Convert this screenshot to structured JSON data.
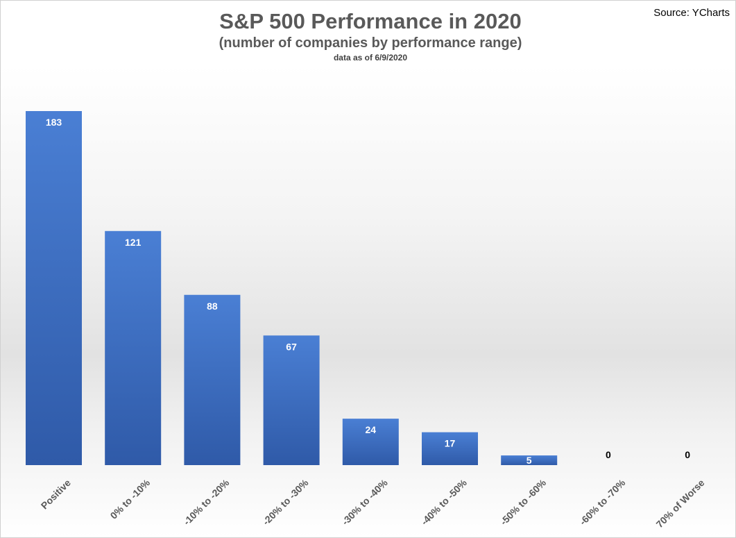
{
  "chart_data": {
    "type": "bar",
    "title": "S&P 500 Performance in 2020",
    "subtitle": "(number of companies by performance range)",
    "note": "data as of 6/9/2020",
    "source": "Source: YCharts",
    "categories": [
      "Positive",
      "0% to -10%",
      "-10% to -20%",
      "-20% to -30%",
      "-30% to -40%",
      "-40% to -50%",
      "-50% to -60%",
      "-60% to -70%",
      "70% of Worse"
    ],
    "values": [
      183,
      121,
      88,
      67,
      24,
      17,
      5,
      0,
      0
    ],
    "ylim": [
      0,
      183
    ],
    "grid": false,
    "legend": "none",
    "data_labels": true,
    "colors": {
      "bar_top": "#4a7fd4",
      "bar_bottom": "#2f5aa8",
      "label_inside": "#ffffff",
      "label_outside": "#000000",
      "tick_label": "#595959"
    }
  }
}
